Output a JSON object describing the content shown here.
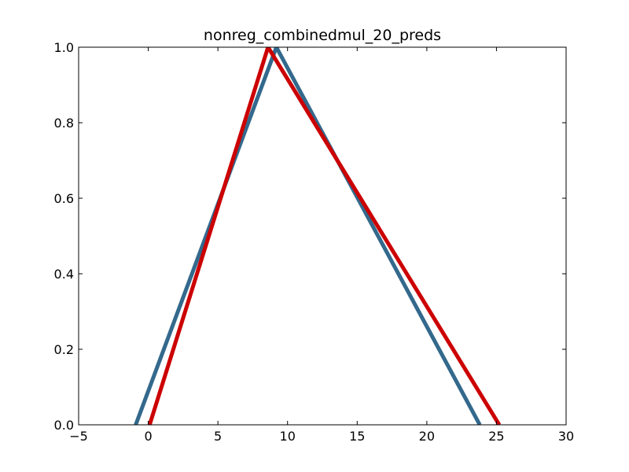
{
  "chart_data": {
    "type": "line",
    "title": "nonreg_combinedmul_20_preds",
    "xlabel": "",
    "ylabel": "",
    "xlim": [
      -5,
      30
    ],
    "ylim": [
      0.0,
      1.0
    ],
    "x_ticks": [
      -5,
      0,
      5,
      10,
      15,
      20,
      25,
      30
    ],
    "y_ticks": [
      "0.0",
      "0.2",
      "0.4",
      "0.6",
      "0.8",
      "1.0"
    ],
    "grid": false,
    "legend": "none",
    "series": [
      {
        "color": "#33698c",
        "x": [
          -0.9,
          9.2,
          23.8
        ],
        "y": [
          0.0,
          1.0,
          0.0
        ]
      },
      {
        "color": "#cc0000",
        "x": [
          0.1,
          8.6,
          25.2
        ],
        "y": [
          0.0,
          1.0,
          0.0
        ]
      }
    ]
  }
}
